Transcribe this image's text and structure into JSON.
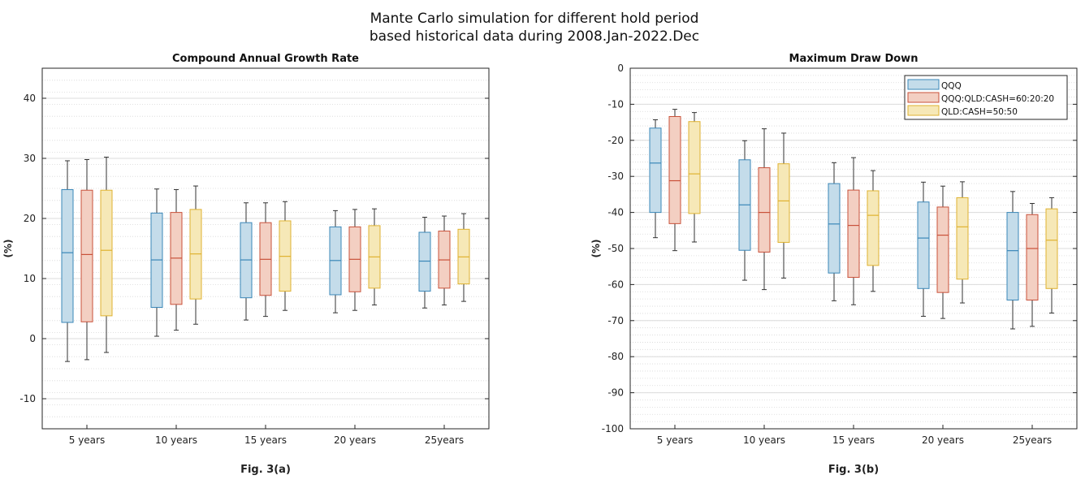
{
  "suptitle": {
    "line1": "Mante Carlo simulation for different hold period",
    "line2": "based historical data during 2008.Jan-2022.Dec"
  },
  "colors": {
    "QQQ": {
      "fill": "#c4dcea",
      "stroke": "#3a87b8"
    },
    "QQQ:QLD:CASH=60:20:20": {
      "fill": "#f3cfc2",
      "stroke": "#c9513a"
    },
    "QLD:CASH=50:50": {
      "fill": "#f6e8b7",
      "stroke": "#dfb230"
    }
  },
  "chart_data": [
    {
      "type": "box",
      "title": "Compound Annual Growth Rate",
      "ylabel": "(%)",
      "xlabel": "",
      "caption": "Fig. 3(a)",
      "categories": [
        "5 years",
        "10 years",
        "15 years",
        "20 years",
        "25years"
      ],
      "ylim": [
        -15,
        45
      ],
      "yticks": [
        -10,
        0,
        10,
        20,
        30,
        40
      ],
      "ytick_labels": [
        "-10",
        "0",
        "10",
        "20",
        "30",
        "40"
      ],
      "grid": true,
      "legend": null,
      "series": [
        {
          "name": "QQQ",
          "boxes": [
            {
              "min": -3.8,
              "q1": 2.7,
              "median": 14.3,
              "q3": 24.8,
              "max": 29.6
            },
            {
              "min": 0.4,
              "q1": 5.2,
              "median": 13.1,
              "q3": 20.9,
              "max": 24.9
            },
            {
              "min": 3.1,
              "q1": 6.8,
              "median": 13.1,
              "q3": 19.3,
              "max": 22.6
            },
            {
              "min": 4.3,
              "q1": 7.3,
              "median": 13.0,
              "q3": 18.6,
              "max": 21.3
            },
            {
              "min": 5.1,
              "q1": 7.9,
              "median": 12.9,
              "q3": 17.7,
              "max": 20.2
            }
          ]
        },
        {
          "name": "QQQ:QLD:CASH=60:20:20",
          "boxes": [
            {
              "min": -3.5,
              "q1": 2.8,
              "median": 14.0,
              "q3": 24.7,
              "max": 29.8
            },
            {
              "min": 1.4,
              "q1": 5.7,
              "median": 13.4,
              "q3": 21.0,
              "max": 24.8
            },
            {
              "min": 3.7,
              "q1": 7.2,
              "median": 13.2,
              "q3": 19.3,
              "max": 22.6
            },
            {
              "min": 4.7,
              "q1": 7.8,
              "median": 13.2,
              "q3": 18.6,
              "max": 21.5
            },
            {
              "min": 5.6,
              "q1": 8.4,
              "median": 13.1,
              "q3": 17.9,
              "max": 20.4
            }
          ]
        },
        {
          "name": "QLD:CASH=50:50",
          "boxes": [
            {
              "min": -2.3,
              "q1": 3.8,
              "median": 14.7,
              "q3": 24.7,
              "max": 30.2
            },
            {
              "min": 2.4,
              "q1": 6.6,
              "median": 14.1,
              "q3": 21.5,
              "max": 25.4
            },
            {
              "min": 4.7,
              "q1": 7.9,
              "median": 13.7,
              "q3": 19.6,
              "max": 22.8
            },
            {
              "min": 5.6,
              "q1": 8.4,
              "median": 13.6,
              "q3": 18.8,
              "max": 21.6
            },
            {
              "min": 6.2,
              "q1": 9.1,
              "median": 13.6,
              "q3": 18.2,
              "max": 20.8
            }
          ]
        }
      ]
    },
    {
      "type": "box",
      "title": "Maximum Draw Down",
      "ylabel": "(%)",
      "xlabel": "",
      "caption": "Fig. 3(b)",
      "categories": [
        "5 years",
        "10 years",
        "15 years",
        "20 years",
        "25years"
      ],
      "ylim": [
        -100,
        0
      ],
      "yticks": [
        -100,
        -90,
        -80,
        -70,
        -60,
        -50,
        -40,
        -30,
        -20,
        -10,
        0
      ],
      "ytick_labels": [
        "-100",
        "-90",
        "-80",
        "-70",
        "-60",
        "-50",
        "-40",
        "-30",
        "-20",
        "-10",
        "0"
      ],
      "grid": true,
      "legend": "top-right",
      "series": [
        {
          "name": "QQQ",
          "boxes": [
            {
              "min": -47.0,
              "q1": -40.0,
              "median": -26.3,
              "q3": -16.6,
              "max": -14.3
            },
            {
              "min": -58.8,
              "q1": -50.5,
              "median": -37.9,
              "q3": -25.4,
              "max": -20.1
            },
            {
              "min": -64.5,
              "q1": -56.8,
              "median": -43.2,
              "q3": -32.0,
              "max": -26.2
            },
            {
              "min": -68.8,
              "q1": -61.1,
              "median": -47.1,
              "q3": -37.1,
              "max": -31.6
            },
            {
              "min": -72.3,
              "q1": -64.3,
              "median": -50.6,
              "q3": -40.0,
              "max": -34.2
            }
          ]
        },
        {
          "name": "QQQ:QLD:CASH=60:20:20",
          "boxes": [
            {
              "min": -50.6,
              "q1": -43.1,
              "median": -31.2,
              "q3": -13.4,
              "max": -11.4
            },
            {
              "min": -61.4,
              "q1": -51.0,
              "median": -40.0,
              "q3": -27.6,
              "max": -16.8
            },
            {
              "min": -65.6,
              "q1": -58.0,
              "median": -43.6,
              "q3": -33.8,
              "max": -24.8
            },
            {
              "min": -69.4,
              "q1": -62.2,
              "median": -46.3,
              "q3": -38.5,
              "max": -32.7
            },
            {
              "min": -71.6,
              "q1": -64.3,
              "median": -50.0,
              "q3": -40.6,
              "max": -37.5
            }
          ]
        },
        {
          "name": "QLD:CASH=50:50",
          "boxes": [
            {
              "min": -48.2,
              "q1": -40.3,
              "median": -29.3,
              "q3": -14.8,
              "max": -12.3
            },
            {
              "min": -58.2,
              "q1": -48.3,
              "median": -36.8,
              "q3": -26.5,
              "max": -18.0
            },
            {
              "min": -61.9,
              "q1": -54.7,
              "median": -40.8,
              "q3": -34.0,
              "max": -28.4
            },
            {
              "min": -65.1,
              "q1": -58.5,
              "median": -44.0,
              "q3": -35.9,
              "max": -31.5
            },
            {
              "min": -67.9,
              "q1": -61.1,
              "median": -47.7,
              "q3": -39.0,
              "max": -35.9
            }
          ]
        }
      ]
    }
  ]
}
